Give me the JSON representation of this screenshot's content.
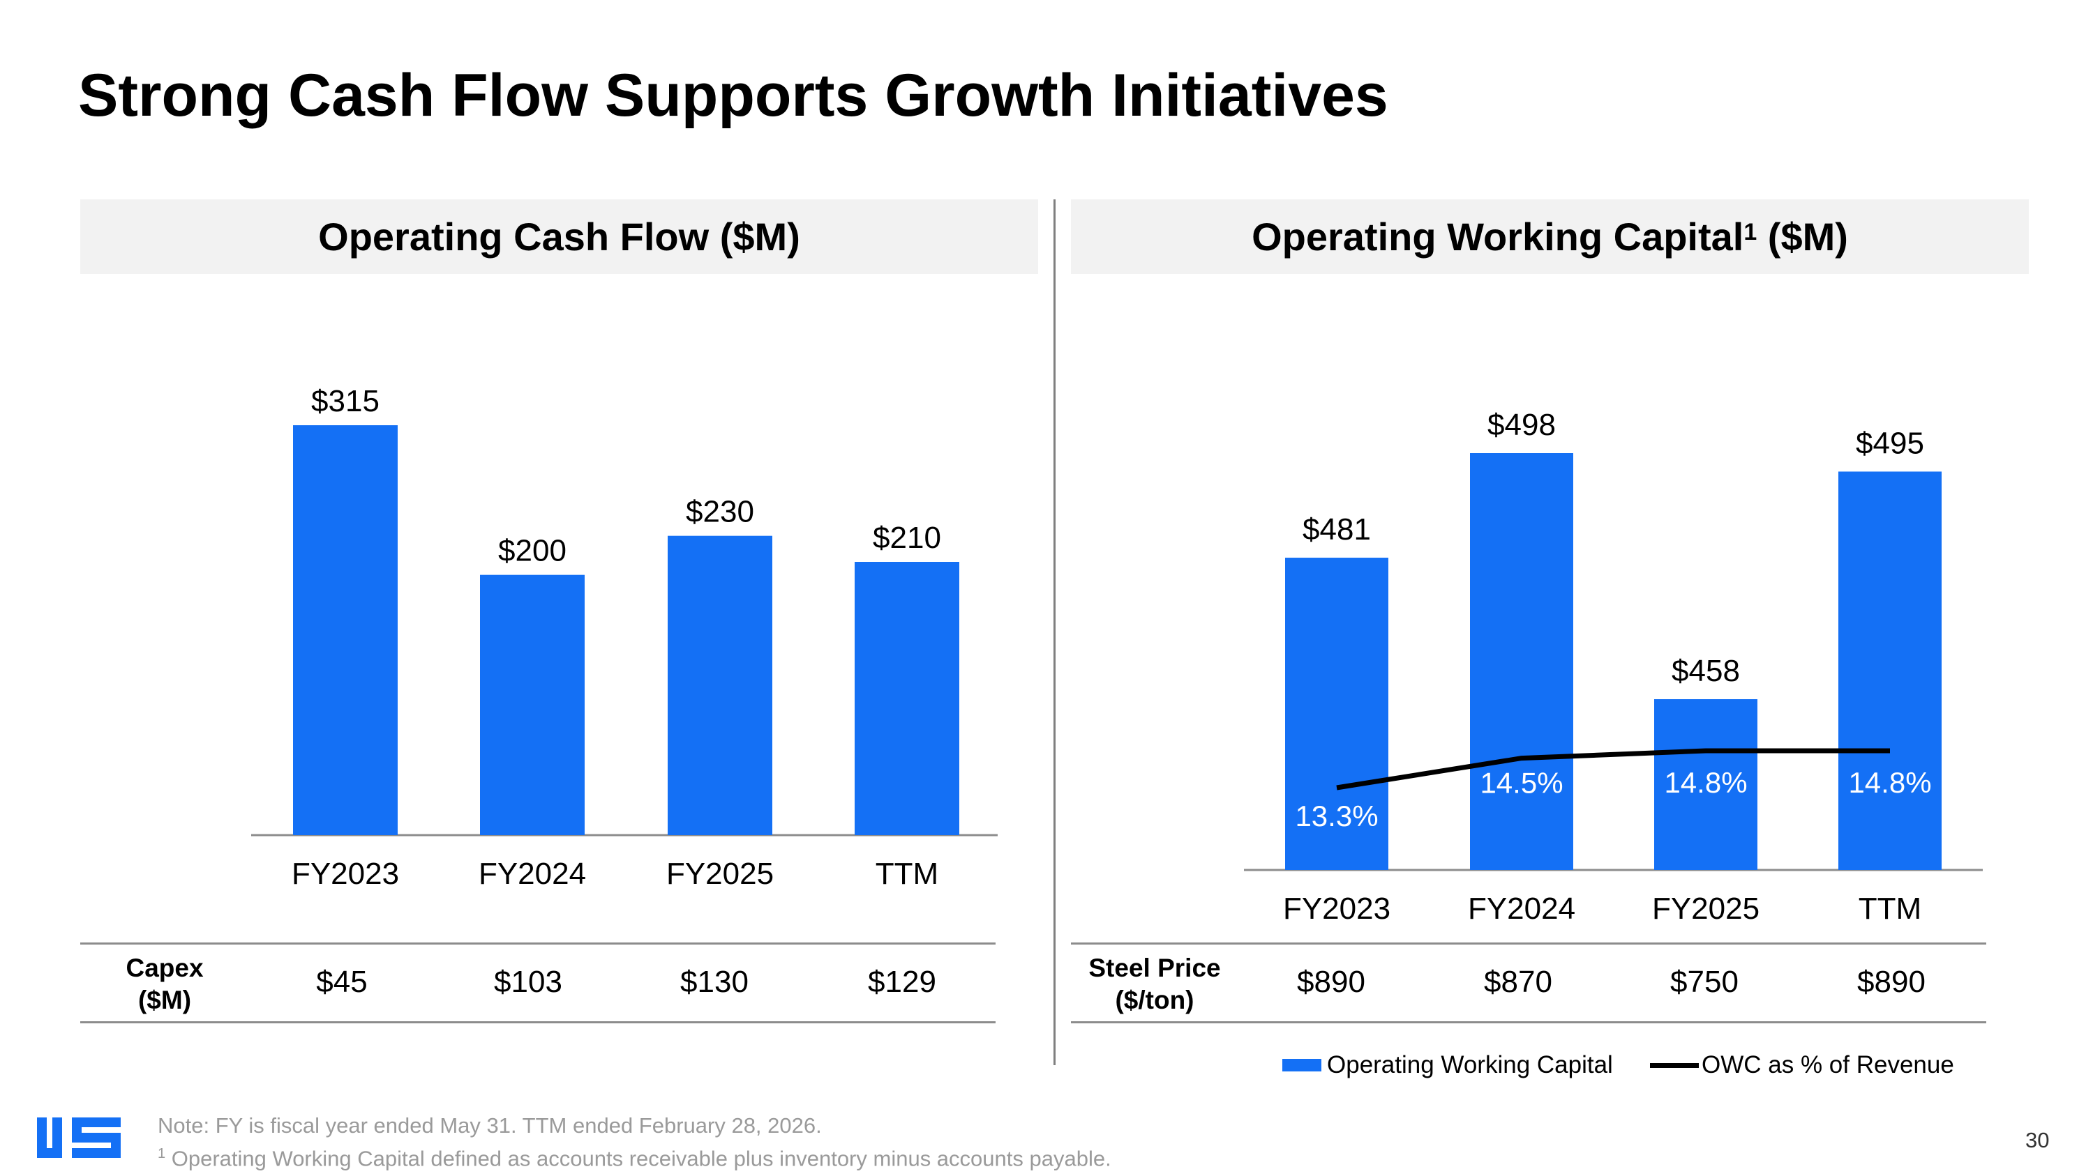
{
  "title": "Strong Cash Flow Supports Growth Initiatives",
  "left_header": "Operating Cash Flow ($M)",
  "right_header": {
    "text": "Operating Working Capital",
    "sup": "1",
    "suffix": " ($M)"
  },
  "colors": {
    "bar": "#1470f5",
    "line": "#000000",
    "header_bg": "#f2f2f2"
  },
  "chart_data": [
    {
      "type": "bar",
      "title": "Operating Cash Flow ($M)",
      "categories": [
        "FY2023",
        "FY2024",
        "FY2025",
        "TTM"
      ],
      "values": [
        315,
        200,
        230,
        210
      ],
      "value_labels": [
        "$315",
        "$200",
        "$230",
        "$210"
      ],
      "ylim": [
        0,
        315
      ]
    },
    {
      "type": "bar",
      "title": "Operating Working Capital ($M)",
      "categories": [
        "FY2023",
        "FY2024",
        "FY2025",
        "TTM"
      ],
      "series": [
        {
          "name": "Operating Working Capital",
          "type": "bar",
          "values": [
            481,
            498,
            458,
            495
          ],
          "labels": [
            "$481",
            "$498",
            "$458",
            "$495"
          ]
        },
        {
          "name": "OWC as % of Revenue",
          "type": "line",
          "values": [
            13.3,
            14.5,
            14.8,
            14.8
          ],
          "labels": [
            "13.3%",
            "14.5%",
            "14.8%",
            "14.8%"
          ]
        }
      ]
    }
  ],
  "capex_table": {
    "label_line1": "Capex",
    "label_line2": "($M)",
    "values": [
      "$45",
      "$103",
      "$130",
      "$129"
    ]
  },
  "steel_table": {
    "label_line1": "Steel Price",
    "label_line2": "($/ton)",
    "values": [
      "$890",
      "$870",
      "$750",
      "$890"
    ]
  },
  "legend": {
    "bar_label": "Operating Working Capital",
    "line_label": "OWC as % of Revenue"
  },
  "footnote": {
    "line1": "Note: FY is fiscal year ended May 31. TTM ended February 28, 2026.",
    "line2_sup": "1",
    "line2": " Operating Working Capital defined as accounts receivable plus inventory minus accounts payable."
  },
  "page_number": "30"
}
